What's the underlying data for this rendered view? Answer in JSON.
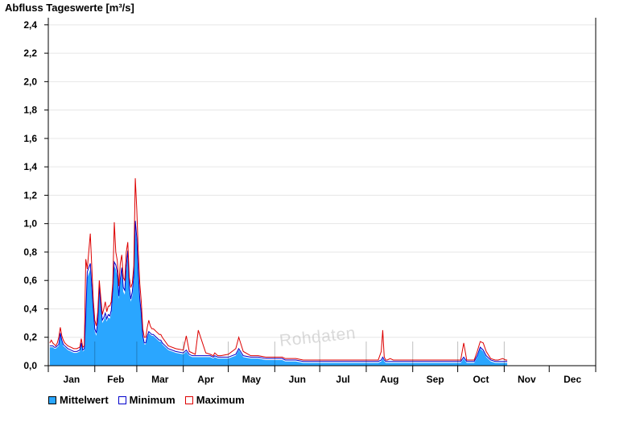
{
  "chart_data": {
    "type": "area",
    "title": "Abfluss Tageswerte [m³/s]",
    "xlabel": "",
    "ylabel": "",
    "ylim": [
      0,
      2.45
    ],
    "y_ticks": [
      "0,0",
      "0,2",
      "0,4",
      "0,6",
      "0,8",
      "1,0",
      "1,2",
      "1,4",
      "1,6",
      "1,8",
      "2,0",
      "2,2",
      "2,4"
    ],
    "y_tick_values": [
      0,
      0.2,
      0.4,
      0.6,
      0.8,
      1.0,
      1.2,
      1.4,
      1.6,
      1.8,
      2.0,
      2.2,
      2.4
    ],
    "categories": [
      "Jan",
      "Feb",
      "Mar",
      "Apr",
      "May",
      "Jun",
      "Jul",
      "Aug",
      "Sep",
      "Oct",
      "Nov",
      "Dec"
    ],
    "grid": true,
    "legend_position": "bottom-left",
    "watermark": "Rohdaten",
    "series": [
      {
        "name": "Mittelwert",
        "color": "#2aa6ff",
        "x": [
          1,
          2,
          3,
          4,
          5,
          6,
          7,
          8,
          9,
          10,
          11,
          12,
          13,
          15,
          17,
          19,
          21,
          22,
          23,
          24,
          25,
          26,
          28,
          30,
          31,
          32,
          33,
          34,
          35,
          36,
          37,
          38,
          39,
          40,
          41,
          42,
          43,
          44,
          45,
          46,
          47,
          48,
          49,
          50,
          51,
          52,
          53,
          54,
          55,
          56,
          57,
          58,
          59,
          60,
          61,
          62,
          63,
          64,
          65,
          66,
          67,
          68,
          69,
          70,
          71,
          72,
          73,
          74,
          75,
          76,
          78,
          80,
          85,
          90,
          92,
          94,
          96,
          98,
          100,
          105,
          108,
          110,
          111,
          113,
          115,
          120,
          125,
          127,
          130,
          135,
          140,
          145,
          150,
          152,
          154,
          156,
          158,
          160,
          162,
          165,
          170,
          175,
          180,
          185,
          190,
          195,
          200,
          205,
          210,
          215,
          220,
          222,
          223,
          224,
          225,
          226,
          228,
          230,
          235,
          240,
          245,
          250,
          255,
          260,
          265,
          270,
          275,
          277,
          279,
          281,
          284,
          286,
          288,
          290,
          292,
          295,
          298,
          300,
          303,
          305,
          306
        ],
        "values": [
          0.13,
          0.13,
          0.13,
          0.12,
          0.12,
          0.13,
          0.14,
          0.22,
          0.17,
          0.14,
          0.13,
          0.12,
          0.11,
          0.1,
          0.09,
          0.09,
          0.1,
          0.15,
          0.1,
          0.11,
          0.33,
          0.62,
          0.68,
          0.38,
          0.24,
          0.21,
          0.29,
          0.53,
          0.41,
          0.3,
          0.32,
          0.35,
          0.31,
          0.34,
          0.33,
          0.37,
          0.5,
          0.7,
          0.68,
          0.63,
          0.47,
          0.58,
          0.66,
          0.52,
          0.5,
          0.66,
          0.77,
          0.52,
          0.45,
          0.49,
          0.6,
          0.98,
          0.86,
          0.62,
          0.45,
          0.35,
          0.2,
          0.15,
          0.15,
          0.2,
          0.23,
          0.22,
          0.21,
          0.21,
          0.2,
          0.19,
          0.18,
          0.17,
          0.17,
          0.15,
          0.13,
          0.11,
          0.09,
          0.08,
          0.1,
          0.07,
          0.06,
          0.06,
          0.06,
          0.06,
          0.06,
          0.05,
          0.06,
          0.05,
          0.05,
          0.05,
          0.07,
          0.11,
          0.06,
          0.05,
          0.05,
          0.04,
          0.04,
          0.04,
          0.04,
          0.04,
          0.03,
          0.03,
          0.03,
          0.03,
          0.02,
          0.02,
          0.02,
          0.02,
          0.02,
          0.02,
          0.02,
          0.02,
          0.02,
          0.02,
          0.02,
          0.03,
          0.05,
          0.03,
          0.02,
          0.02,
          0.02,
          0.02,
          0.02,
          0.02,
          0.02,
          0.02,
          0.02,
          0.02,
          0.02,
          0.02,
          0.02,
          0.05,
          0.02,
          0.02,
          0.02,
          0.06,
          0.12,
          0.1,
          0.06,
          0.03,
          0.02,
          0.02,
          0.02,
          0.02,
          0.02
        ]
      },
      {
        "name": "Minimum",
        "color": "#0000cc",
        "x": [
          1,
          2,
          3,
          4,
          5,
          6,
          7,
          8,
          9,
          10,
          11,
          12,
          13,
          15,
          17,
          19,
          21,
          22,
          23,
          24,
          25,
          26,
          28,
          30,
          31,
          32,
          33,
          34,
          35,
          36,
          37,
          38,
          39,
          40,
          41,
          42,
          43,
          44,
          45,
          46,
          47,
          48,
          49,
          50,
          51,
          52,
          53,
          54,
          55,
          56,
          57,
          58,
          59,
          60,
          61,
          62,
          63,
          64,
          65,
          66,
          67,
          68,
          69,
          70,
          71,
          72,
          73,
          74,
          75,
          76,
          78,
          80,
          85,
          90,
          92,
          94,
          96,
          98,
          100,
          105,
          108,
          110,
          111,
          113,
          115,
          120,
          125,
          127,
          130,
          135,
          140,
          145,
          150,
          152,
          154,
          156,
          158,
          160,
          162,
          165,
          170,
          175,
          180,
          185,
          190,
          195,
          200,
          205,
          210,
          215,
          220,
          222,
          223,
          224,
          225,
          226,
          228,
          230,
          235,
          240,
          245,
          250,
          255,
          260,
          265,
          270,
          275,
          277,
          279,
          281,
          284,
          286,
          288,
          290,
          292,
          295,
          298,
          300,
          303,
          305,
          306
        ],
        "values": [
          0.14,
          0.14,
          0.14,
          0.13,
          0.13,
          0.14,
          0.15,
          0.23,
          0.18,
          0.15,
          0.14,
          0.13,
          0.12,
          0.11,
          0.1,
          0.1,
          0.11,
          0.16,
          0.11,
          0.12,
          0.35,
          0.66,
          0.72,
          0.4,
          0.26,
          0.23,
          0.31,
          0.56,
          0.43,
          0.32,
          0.34,
          0.37,
          0.33,
          0.36,
          0.35,
          0.39,
          0.53,
          0.73,
          0.71,
          0.66,
          0.49,
          0.61,
          0.69,
          0.55,
          0.53,
          0.7,
          0.81,
          0.55,
          0.47,
          0.52,
          0.63,
          1.02,
          0.9,
          0.65,
          0.47,
          0.37,
          0.21,
          0.16,
          0.16,
          0.21,
          0.24,
          0.23,
          0.22,
          0.22,
          0.21,
          0.2,
          0.19,
          0.18,
          0.18,
          0.16,
          0.14,
          0.12,
          0.1,
          0.09,
          0.11,
          0.08,
          0.07,
          0.07,
          0.07,
          0.07,
          0.07,
          0.06,
          0.07,
          0.06,
          0.06,
          0.06,
          0.08,
          0.12,
          0.07,
          0.06,
          0.06,
          0.05,
          0.05,
          0.05,
          0.05,
          0.05,
          0.04,
          0.04,
          0.04,
          0.04,
          0.03,
          0.03,
          0.03,
          0.03,
          0.03,
          0.03,
          0.03,
          0.03,
          0.03,
          0.03,
          0.03,
          0.04,
          0.06,
          0.04,
          0.03,
          0.03,
          0.03,
          0.03,
          0.03,
          0.03,
          0.03,
          0.03,
          0.03,
          0.03,
          0.03,
          0.03,
          0.03,
          0.06,
          0.03,
          0.03,
          0.03,
          0.07,
          0.13,
          0.11,
          0.07,
          0.04,
          0.03,
          0.03,
          0.03,
          0.03,
          0.03
        ]
      },
      {
        "name": "Maximum",
        "color": "#dd0000",
        "x": [
          1,
          2,
          3,
          4,
          5,
          6,
          7,
          8,
          9,
          10,
          11,
          12,
          13,
          15,
          17,
          19,
          21,
          22,
          23,
          24,
          25,
          26,
          28,
          30,
          31,
          32,
          33,
          34,
          35,
          36,
          37,
          38,
          39,
          40,
          41,
          42,
          43,
          44,
          45,
          46,
          47,
          48,
          49,
          50,
          51,
          52,
          53,
          54,
          55,
          56,
          57,
          58,
          59,
          60,
          61,
          62,
          63,
          64,
          65,
          66,
          67,
          68,
          69,
          70,
          71,
          72,
          73,
          74,
          75,
          76,
          78,
          80,
          85,
          90,
          92,
          94,
          96,
          98,
          100,
          105,
          108,
          110,
          111,
          113,
          115,
          120,
          125,
          127,
          130,
          135,
          140,
          145,
          150,
          152,
          154,
          156,
          158,
          160,
          162,
          165,
          170,
          175,
          180,
          185,
          190,
          195,
          200,
          205,
          210,
          215,
          220,
          222,
          223,
          224,
          225,
          226,
          228,
          230,
          235,
          240,
          245,
          250,
          255,
          260,
          265,
          270,
          275,
          277,
          279,
          281,
          284,
          286,
          288,
          290,
          292,
          295,
          298,
          300,
          303,
          305,
          306
        ],
        "values": [
          0.16,
          0.18,
          0.16,
          0.15,
          0.14,
          0.16,
          0.2,
          0.27,
          0.21,
          0.18,
          0.16,
          0.15,
          0.14,
          0.13,
          0.12,
          0.12,
          0.13,
          0.19,
          0.13,
          0.14,
          0.75,
          0.68,
          0.93,
          0.46,
          0.32,
          0.28,
          0.38,
          0.6,
          0.48,
          0.36,
          0.4,
          0.45,
          0.38,
          0.42,
          0.42,
          0.45,
          0.58,
          1.01,
          0.8,
          0.74,
          0.56,
          0.72,
          0.78,
          0.62,
          0.6,
          0.8,
          0.87,
          0.62,
          0.55,
          0.58,
          0.7,
          1.32,
          1.1,
          0.8,
          0.58,
          0.45,
          0.26,
          0.2,
          0.2,
          0.27,
          0.32,
          0.28,
          0.26,
          0.26,
          0.25,
          0.24,
          0.23,
          0.22,
          0.22,
          0.2,
          0.17,
          0.14,
          0.12,
          0.11,
          0.21,
          0.1,
          0.09,
          0.08,
          0.25,
          0.09,
          0.08,
          0.07,
          0.09,
          0.07,
          0.07,
          0.08,
          0.12,
          0.2,
          0.1,
          0.07,
          0.07,
          0.06,
          0.06,
          0.06,
          0.06,
          0.06,
          0.05,
          0.05,
          0.05,
          0.05,
          0.04,
          0.04,
          0.04,
          0.04,
          0.04,
          0.04,
          0.04,
          0.04,
          0.04,
          0.04,
          0.04,
          0.1,
          0.25,
          0.06,
          0.04,
          0.04,
          0.05,
          0.04,
          0.04,
          0.04,
          0.04,
          0.04,
          0.04,
          0.04,
          0.04,
          0.04,
          0.04,
          0.16,
          0.04,
          0.04,
          0.04,
          0.1,
          0.17,
          0.16,
          0.1,
          0.05,
          0.04,
          0.04,
          0.05,
          0.04,
          0.04
        ]
      }
    ]
  },
  "legend": {
    "mean_label": "Mittelwert",
    "min_label": "Minimum",
    "max_label": "Maximum"
  }
}
